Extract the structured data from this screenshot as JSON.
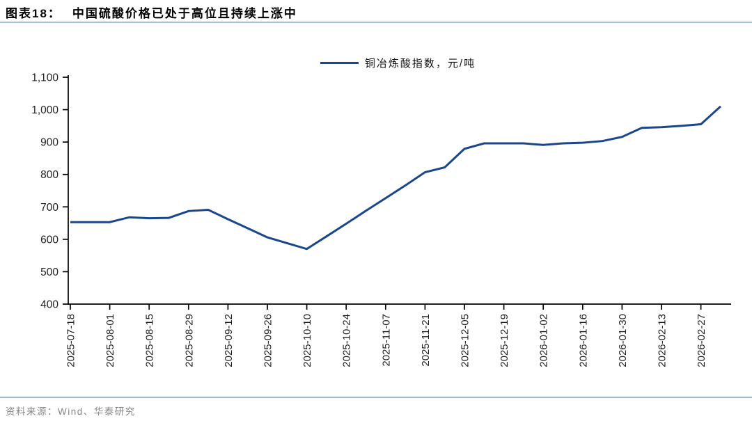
{
  "header": {
    "tag": "图表18：",
    "title": "中国硫酸价格已处于高位且持续上涨中"
  },
  "legend": {
    "label": "铜冶炼酸指数，元/吨"
  },
  "source": {
    "label": "资料来源：Wind、华泰研究"
  },
  "colors": {
    "line": "#1A468C",
    "axis": "#000000",
    "tick_text": "#1f1f1f",
    "title_rule": "#A6C1DB",
    "footer_rule": "#9FB6CB",
    "source_text": "#858585"
  },
  "chart_data": {
    "type": "line",
    "title": "图表18： 中国硫酸价格已处于高位且持续上涨中",
    "series_name": "铜冶炼酸指数，元/吨",
    "ylabel": "元/吨",
    "ylim": [
      400,
      1100
    ],
    "y_ticks": [
      400,
      500,
      600,
      700,
      800,
      900,
      1000,
      1100
    ],
    "grid": false,
    "legend_position": "top-center",
    "x": [
      "2025-07-18",
      "2025-07-25",
      "2025-08-01",
      "2025-08-08",
      "2025-08-15",
      "2025-08-22",
      "2025-08-29",
      "2025-09-05",
      "2025-09-12",
      "2025-09-19",
      "2025-09-26",
      "2025-10-03",
      "2025-10-10",
      "2025-10-17",
      "2025-10-24",
      "2025-10-31",
      "2025-11-07",
      "2025-11-14",
      "2025-11-21",
      "2025-11-28",
      "2025-12-05",
      "2025-12-12",
      "2025-12-19",
      "2025-12-26",
      "2026-01-02",
      "2026-01-09",
      "2026-01-16",
      "2026-01-23",
      "2026-01-30",
      "2026-02-06",
      "2026-02-13",
      "2026-02-20",
      "2026-02-27",
      "2026-03-06"
    ],
    "values": [
      653,
      653,
      653,
      668,
      665,
      666,
      687,
      691,
      662,
      634,
      606,
      588,
      570,
      609,
      648,
      688,
      727,
      766,
      807,
      822,
      879,
      896,
      896,
      896,
      891,
      896,
      898,
      903,
      916,
      944,
      946,
      950,
      955,
      1010
    ],
    "x_tick_labels": [
      "2025-07-18",
      "2025-08-01",
      "2025-08-15",
      "2025-08-29",
      "2025-09-12",
      "2025-09-26",
      "2025-10-10",
      "2025-10-24",
      "2025-11-07",
      "2025-11-21",
      "2025-12-05",
      "2025-12-19",
      "2026-01-02",
      "2026-01-16",
      "2026-01-30",
      "2026-02-13",
      "2026-02-27"
    ]
  }
}
